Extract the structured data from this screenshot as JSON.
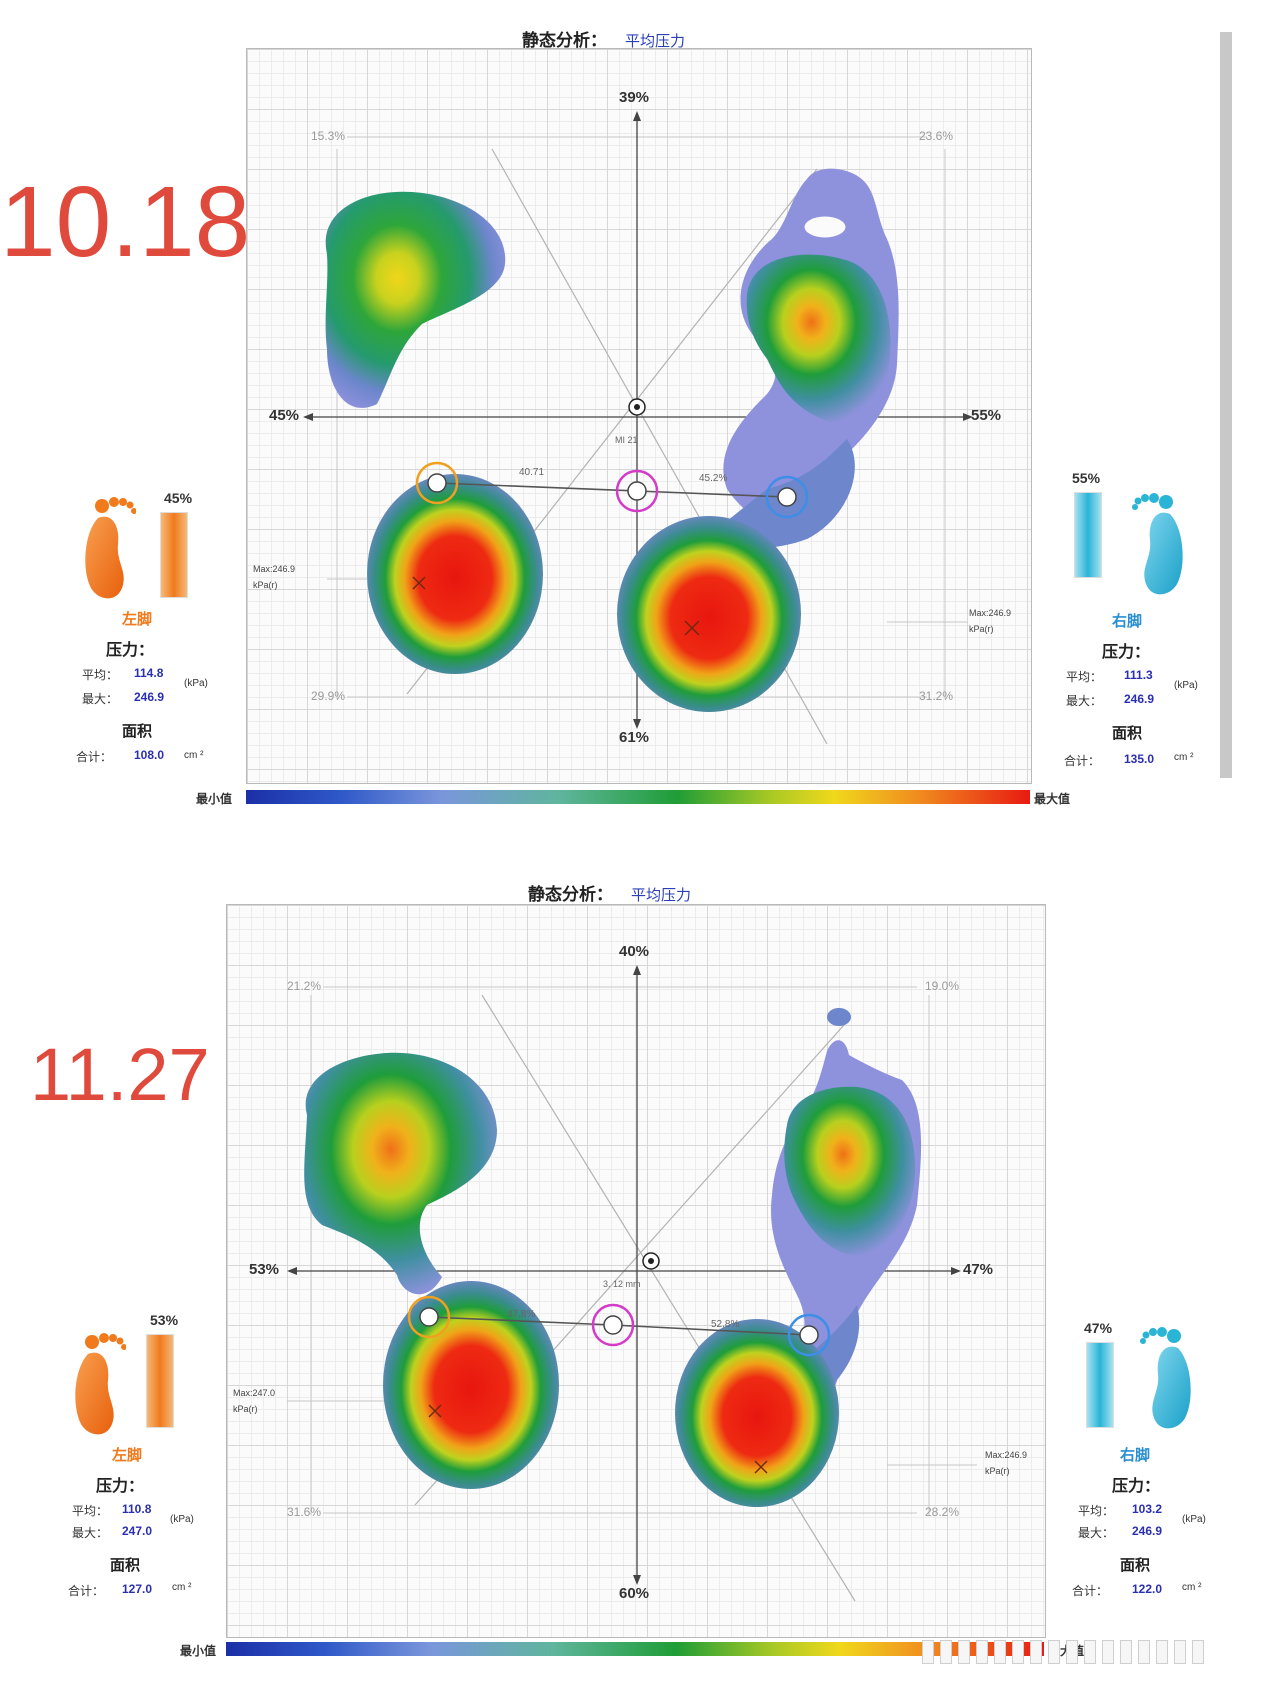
{
  "panels": [
    {
      "date": "10.18",
      "title": "静态分析：",
      "subtitle": "平均压力",
      "top_pct": "39%",
      "bottom_pct": "61%",
      "left_pct": "45%",
      "right_pct": "55%",
      "corner_tl": "15.3%",
      "corner_tr": "23.6%",
      "corner_bl": "29.9%",
      "corner_br": "31.2%",
      "cop_left_label": "40.71",
      "cop_right_label": "45.2%",
      "cop_center_label": "MI 21",
      "max_left": [
        "Max:246.9",
        "kPa(r)"
      ],
      "max_right": [
        "Max:246.9",
        "kPa(r)"
      ],
      "scale_min": "最小值",
      "scale_max": "最大值",
      "left_foot": {
        "pct": "45%",
        "name": "左脚",
        "pressure_label": "压力：",
        "avg_label": "平均：",
        "avg": "114.8",
        "max_label": "最大：",
        "max": "246.9",
        "unit": "(kPa)",
        "area_label": "面积",
        "total_label": "合计：",
        "area": "108.0",
        "area_unit": "cm ²"
      },
      "right_foot": {
        "pct": "55%",
        "name": "右脚",
        "pressure_label": "压力：",
        "avg_label": "平均：",
        "avg": "111.3",
        "max_label": "最大：",
        "max": "246.9",
        "unit": "(kPa)",
        "area_label": "面积",
        "total_label": "合计：",
        "area": "135.0",
        "area_unit": "cm ²"
      }
    },
    {
      "date": "11.27",
      "title": "静态分析：",
      "subtitle": "平均压力",
      "top_pct": "40%",
      "bottom_pct": "60%",
      "left_pct": "53%",
      "right_pct": "47%",
      "corner_tl": "21.2%",
      "corner_tr": "19.0%",
      "corner_bl": "31.6%",
      "corner_br": "28.2%",
      "cop_left_label": "47.8%",
      "cop_right_label": "52.8%",
      "cop_center_label": "3.  12 mm",
      "max_left": [
        "Max:247.0",
        "kPa(r)"
      ],
      "max_right": [
        "Max:246.9",
        "kPa(r)"
      ],
      "scale_min": "最小值",
      "scale_max": "最大值",
      "left_foot": {
        "pct": "53%",
        "name": "左脚",
        "pressure_label": "压力：",
        "avg_label": "平均：",
        "avg": "110.8",
        "max_label": "最大：",
        "max": "247.0",
        "unit": "(kPa)",
        "area_label": "面积",
        "total_label": "合计：",
        "area": "127.0",
        "area_unit": "cm ²"
      },
      "right_foot": {
        "pct": "47%",
        "name": "右脚",
        "pressure_label": "压力：",
        "avg_label": "平均：",
        "avg": "103.2",
        "max_label": "最大：",
        "max": "246.9",
        "unit": "(kPa)",
        "area_label": "面积",
        "total_label": "合计：",
        "area": "122.0",
        "area_unit": "cm ²"
      }
    }
  ],
  "colors": {
    "date": "#e04a3c",
    "left_foot": "#f07a1c",
    "right_foot": "#2ab4d6",
    "value_blue": "#2a2fb0",
    "cop_left": "#f0a020",
    "cop_right": "#3c8ee6",
    "cop_center": "#d23cc8"
  },
  "icons": [
    "left-foot-icon",
    "right-foot-icon"
  ]
}
